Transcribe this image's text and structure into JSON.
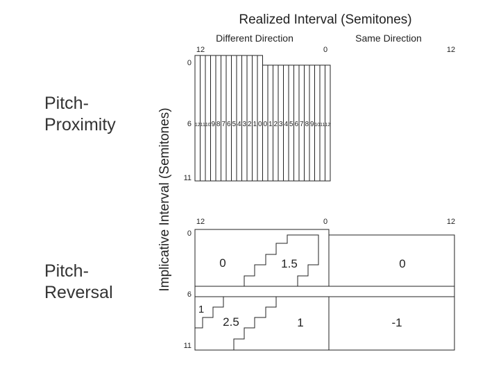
{
  "header": {
    "title": "Realized Interval (Semitones)",
    "left_group": "Different Direction",
    "right_group": "Same Direction",
    "vertical_axis": "Implicative Interval (Semitones)"
  },
  "pitch_proximity": {
    "label_line1": "Pitch-",
    "label_line2": "Proximity",
    "top_ticks": {
      "left": "12",
      "center": "0",
      "right": "12"
    },
    "side_ticks": {
      "top": "0",
      "middle": "6",
      "bottom": "11"
    },
    "column_values": [
      "12",
      "11",
      "10",
      "9",
      "8",
      "7",
      "6",
      "5",
      "4",
      "3",
      "2",
      "1",
      "0",
      "0",
      "1",
      "2",
      "3",
      "4",
      "5",
      "6",
      "7",
      "8",
      "9",
      "10",
      "11",
      "12"
    ]
  },
  "pitch_reversal": {
    "label_line1": "Pitch-",
    "label_line2": "Reversal",
    "top_ticks": {
      "left": "12",
      "center": "0",
      "right": "12"
    },
    "side_ticks": {
      "top": "0",
      "middle": "6",
      "bottom": "11"
    },
    "regions": {
      "upper_left": "0",
      "upper_stair": "1.5",
      "upper_right": "0",
      "lower_corner": "1",
      "lower_stair": "2.5",
      "lower_mid": "1",
      "lower_right": "-1"
    }
  }
}
